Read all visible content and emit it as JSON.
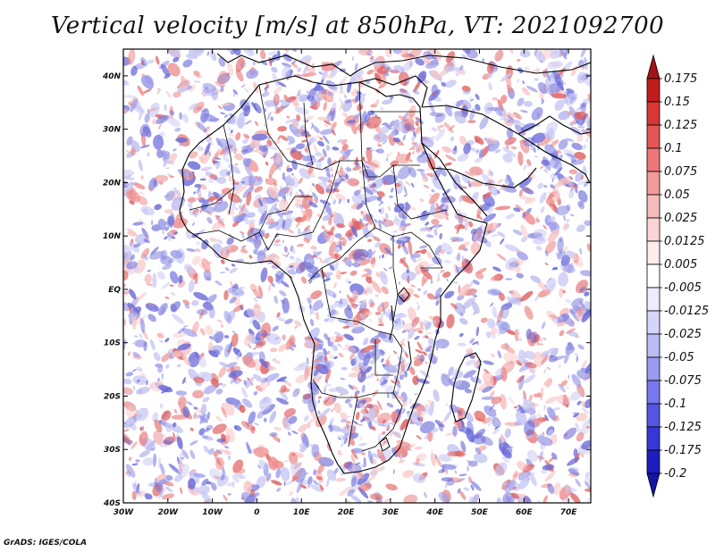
{
  "title": "Vertical velocity [m/s] at 850hPa, VT: 2021092700",
  "credit": "GrADS: IGES/COLA",
  "map": {
    "lon_range": [
      -30,
      75
    ],
    "lat_range": [
      -40,
      45
    ],
    "lon_ticks": [
      {
        "value": -30,
        "label": "30W"
      },
      {
        "value": -20,
        "label": "20W"
      },
      {
        "value": -10,
        "label": "10W"
      },
      {
        "value": 0,
        "label": "0"
      },
      {
        "value": 10,
        "label": "10E"
      },
      {
        "value": 20,
        "label": "20E"
      },
      {
        "value": 30,
        "label": "30E"
      },
      {
        "value": 40,
        "label": "40E"
      },
      {
        "value": 50,
        "label": "50E"
      },
      {
        "value": 60,
        "label": "60E"
      },
      {
        "value": 70,
        "label": "70E"
      }
    ],
    "lat_ticks": [
      {
        "value": 40,
        "label": "40N"
      },
      {
        "value": 30,
        "label": "30N"
      },
      {
        "value": 20,
        "label": "20N"
      },
      {
        "value": 10,
        "label": "10N"
      },
      {
        "value": 0,
        "label": "EQ"
      },
      {
        "value": -10,
        "label": "10S"
      },
      {
        "value": -20,
        "label": "20S"
      },
      {
        "value": -30,
        "label": "30S"
      },
      {
        "value": -40,
        "label": "40S"
      }
    ]
  },
  "colorbar": {
    "labels": [
      "0.175",
      "0.15",
      "0.125",
      "0.1",
      "0.075",
      "0.05",
      "0.025",
      "0.0125",
      "0.005",
      "-0.005",
      "-0.0125",
      "-0.025",
      "-0.05",
      "-0.075",
      "-0.1",
      "-0.125",
      "-0.175",
      "-0.2"
    ],
    "colors": [
      "#a31515",
      "#c21d1d",
      "#d93636",
      "#e55555",
      "#ee7777",
      "#f29a9a",
      "#f6bbbb",
      "#fad5d5",
      "#fdecec",
      "#ffffff",
      "#ececfd",
      "#d5d5fa",
      "#bbbbf6",
      "#9a9af2",
      "#7777ee",
      "#5555e5",
      "#3636d9",
      "#1d1dc2",
      "#1515a3"
    ]
  },
  "field_colors": {
    "positive": [
      "#f7c4c4",
      "#ee8e8e",
      "#e06060"
    ],
    "negative": [
      "#c8c8f4",
      "#9999e8",
      "#6a6ad8"
    ],
    "coast": "#000000"
  }
}
